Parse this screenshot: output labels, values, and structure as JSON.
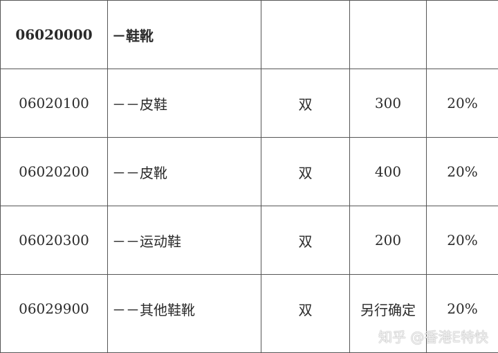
{
  "rows": [
    {
      "code": "06020000",
      "name": "－鞋靴",
      "unit": "",
      "quantity": "",
      "rate": ""
    },
    {
      "code": "06020100",
      "name": "－－皮鞋",
      "unit": "双",
      "quantity": "300",
      "rate": "20%"
    },
    {
      "code": "06020200",
      "name": "－－皮靴",
      "unit": "双",
      "quantity": "400",
      "rate": "20%"
    },
    {
      "code": "06020300",
      "name": "－－运动鞋",
      "unit": "双",
      "quantity": "200",
      "rate": "20%"
    },
    {
      "code": "06029900",
      "name": "－－其他鞋靴",
      "unit": "双",
      "quantity": "另行确定",
      "rate": "20%"
    }
  ],
  "watermark": "知乎 @香港E特快"
}
